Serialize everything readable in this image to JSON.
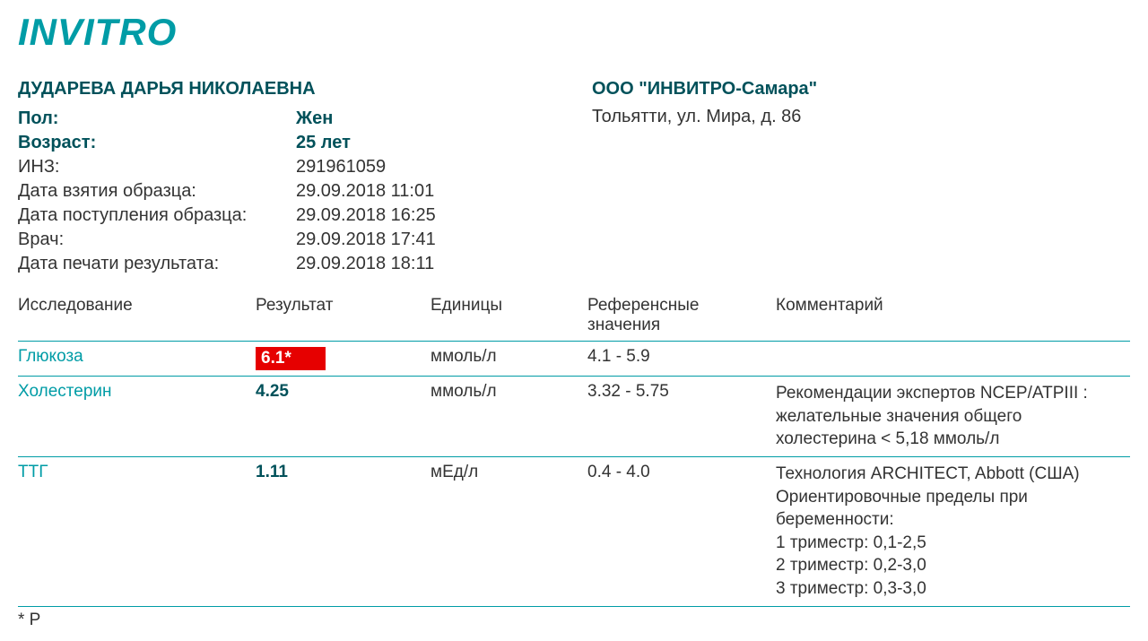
{
  "brand": {
    "logo_text": "INVITRO",
    "brand_color": "#009ca6",
    "heading_color": "#00515a",
    "alert_bg": "#e60000"
  },
  "patient": {
    "name": "ДУДАРЕВА ДАРЬЯ НИКОЛАЕВНА",
    "fields": {
      "sex_label": "Пол:",
      "sex_value": "Жен",
      "age_label": "Возраст:",
      "age_value": "25 лет",
      "inz_label": "ИНЗ:",
      "inz_value": "291961059",
      "sample_taken_label": "Дата взятия образца:",
      "sample_taken_value": "29.09.2018 11:01",
      "sample_received_label": "Дата поступления образца:",
      "sample_received_value": "29.09.2018 16:25",
      "doctor_label": "Врач:",
      "doctor_value": "29.09.2018 17:41",
      "printed_label": "Дата печати результата:",
      "printed_value": "29.09.2018 18:11"
    }
  },
  "lab": {
    "name": "ООО \"ИНВИТРО-Самара\"",
    "address": "Тольятти, ул. Мира, д. 86"
  },
  "table": {
    "headers": {
      "test": "Исследование",
      "result": "Результат",
      "units": "Единицы",
      "ref": "Референсные значения",
      "comment": "Комментарий"
    },
    "rows": [
      {
        "test": "Глюкоза",
        "result": "6.1*",
        "flagged": true,
        "units": "ммоль/л",
        "ref": "4.1 - 5.9",
        "comment": ""
      },
      {
        "test": "Холестерин",
        "result": "4.25",
        "flagged": false,
        "units": "ммоль/л",
        "ref": "3.32 - 5.75",
        "comment": "Рекомендации экспертов NCEP/ATPIII : желательные значения общего холестерина < 5,18 ммоль/л"
      },
      {
        "test": "ТТГ",
        "result": "1.11",
        "flagged": false,
        "units": "мЕд/л",
        "ref": "0.4 - 4.0",
        "comment": "Технология ARCHITECT, Abbott (США) Ориентировочные пределы при беременности:\n1 триместр: 0,1-2,5\n2 триместр: 0,2-3,0\n3 триместр: 0,3-3,0"
      }
    ]
  },
  "footnote": "* Р"
}
